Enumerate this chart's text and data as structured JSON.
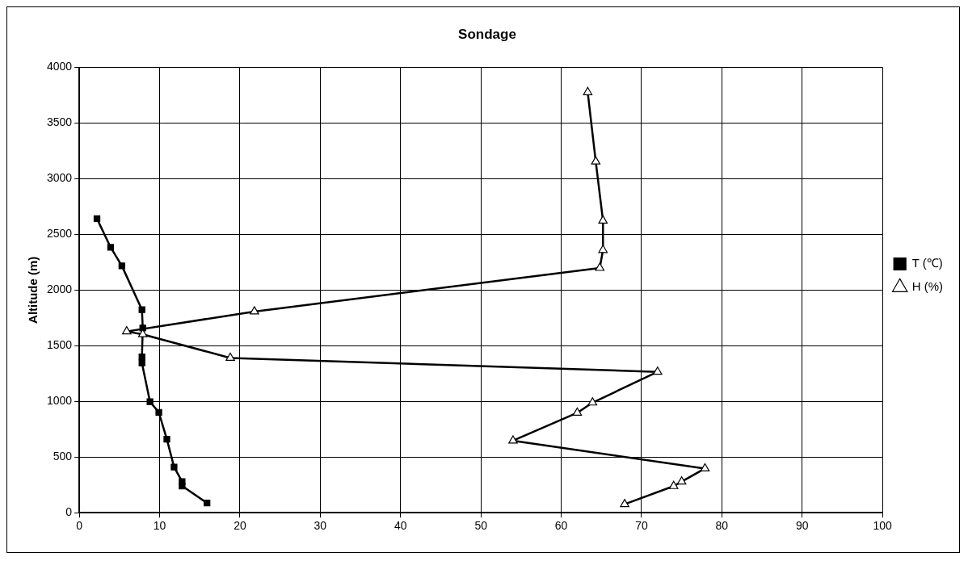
{
  "chart_data": {
    "type": "line",
    "title": "Sondage",
    "ylabel": "Altitude (m)",
    "xlim": [
      0,
      100
    ],
    "xticks": [
      0,
      10,
      20,
      30,
      40,
      50,
      60,
      70,
      80,
      90,
      100
    ],
    "ylim": [
      0,
      4000
    ],
    "yticks": [
      0,
      500,
      1000,
      1500,
      2000,
      2500,
      3000,
      3500,
      4000
    ],
    "grid": true,
    "legend": "right",
    "line_style": "solid",
    "series": [
      {
        "name": "T (℃)",
        "color": "#000000",
        "marker": "square",
        "x": [
          15.9,
          12.8,
          12.8,
          11.8,
          10.9,
          9.9,
          8.8,
          7.8,
          7.8,
          7.9,
          7.8,
          5.3,
          3.9,
          2.2
        ],
        "values": [
          87,
          240,
          280,
          410,
          660,
          902,
          997,
          1345,
          1400,
          1659,
          1823,
          2217,
          2383,
          2641
        ]
      },
      {
        "name": "H (%)",
        "color": "#000000",
        "marker": "triangle",
        "x": [
          67.9,
          74.0,
          75.0,
          77.9,
          54.0,
          62.0,
          63.9,
          72.0,
          18.8,
          7.9,
          5.9,
          21.8,
          64.8,
          65.2,
          65.2,
          64.3,
          63.3
        ],
        "values": [
          77,
          239,
          279,
          397,
          647,
          897,
          989,
          1265,
          1390,
          1602,
          1628,
          1807,
          2198,
          2359,
          2623,
          3154,
          3776
        ]
      }
    ]
  }
}
